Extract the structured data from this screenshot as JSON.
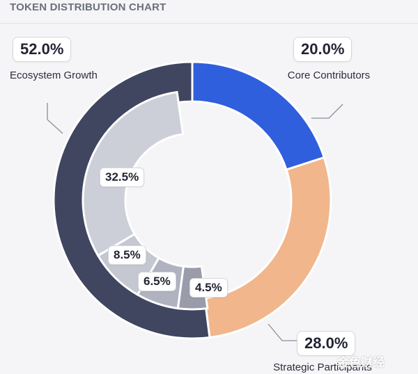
{
  "title": "TOKEN DISTRIBUTION CHART",
  "watermark": "金色财经",
  "chart_data": {
    "type": "pie",
    "title": "TOKEN DISTRIBUTION CHART",
    "outer": [
      {
        "name": "Core Contributors",
        "value": 20.0,
        "label": "20.0%",
        "color": "#2f5fdc"
      },
      {
        "name": "Strategic Participants",
        "value": 28.0,
        "label": "28.0%",
        "color": "#f2b68c"
      },
      {
        "name": "Ecosystem Growth",
        "value": 52.0,
        "label": "52.0%",
        "color": "#404560"
      }
    ],
    "inner": [
      {
        "value": 4.5,
        "label": "4.5%",
        "color": "#9a9caa"
      },
      {
        "value": 6.5,
        "label": "6.5%",
        "color": "#b0b2bf"
      },
      {
        "value": 8.5,
        "label": "8.5%",
        "color": "#c5c7d1"
      },
      {
        "value": 32.5,
        "label": "32.5%",
        "color": "#cdcfd8"
      }
    ]
  }
}
